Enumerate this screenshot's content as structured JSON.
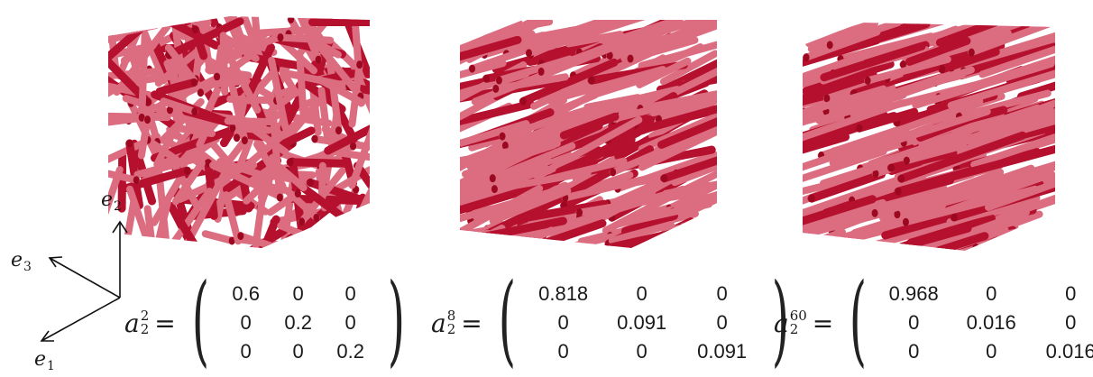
{
  "axes": {
    "e1": {
      "base": "e",
      "sub": "1"
    },
    "e2": {
      "base": "e",
      "sub": "2"
    },
    "e3": {
      "base": "e",
      "sub": "3"
    }
  },
  "colors": {
    "fiber_dark": "#b5102e",
    "fiber_light": "#dc6d80",
    "fiber_end": "#9c0820",
    "background": "#ffffff"
  },
  "panels": [
    {
      "symbol": "a",
      "superscript": "2",
      "subscript": "2",
      "equals": "=",
      "orientation": "random",
      "matrix": [
        [
          "0.6",
          "0",
          "0"
        ],
        [
          "0",
          "0.2",
          "0"
        ],
        [
          "0",
          "0",
          "0.2"
        ]
      ]
    },
    {
      "symbol": "a",
      "superscript": "8",
      "subscript": "2",
      "equals": "=",
      "orientation": "aligned",
      "matrix": [
        [
          "0.818",
          "0",
          "0"
        ],
        [
          "0",
          "0.091",
          "0"
        ],
        [
          "0",
          "0",
          "0.091"
        ]
      ]
    },
    {
      "symbol": "a",
      "superscript": "60",
      "subscript": "2",
      "equals": "=",
      "orientation": "highly-aligned",
      "matrix": [
        [
          "0.968",
          "0",
          "0"
        ],
        [
          "0",
          "0.016",
          "0"
        ],
        [
          "0",
          "0",
          "0.016"
        ]
      ]
    }
  ]
}
